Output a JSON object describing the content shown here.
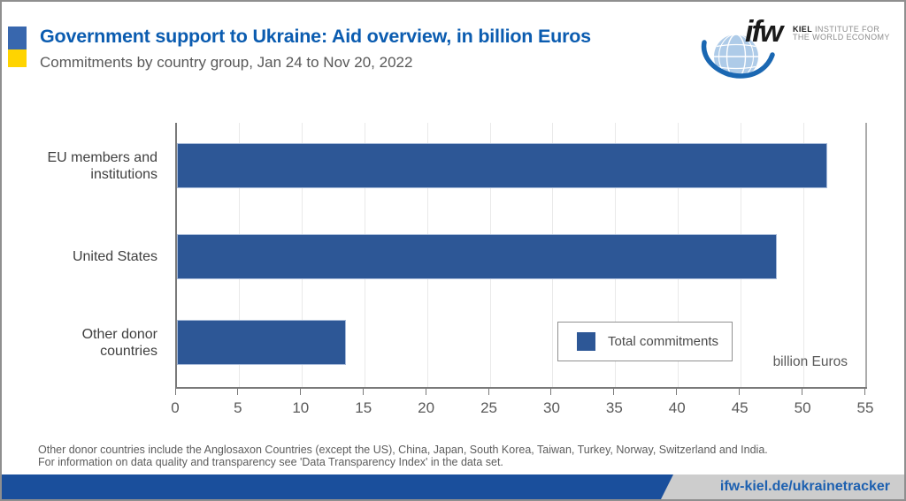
{
  "colors": {
    "title": "#0B5CB0",
    "bar": "#2D5796",
    "flag_blue": "#3867AE",
    "flag_yellow": "#FFD400",
    "footer_blue": "#1A4F9C",
    "footer_link": "#1D60B0"
  },
  "header": {
    "title": "Government support to Ukraine: Aid overview, in billion Euros",
    "subtitle": "Commitments by country group, Jan 24 to Nov 20, 2022"
  },
  "logo": {
    "wordmark": "ifw",
    "institute_bold": "KIEL",
    "institute_line1_rest": "INSTITUTE FOR",
    "institute_line2": "THE WORLD ECONOMY"
  },
  "chart_data": {
    "type": "bar",
    "orientation": "horizontal",
    "title": "Government support to Ukraine: Aid overview, in billion Euros",
    "subtitle": "Commitments by country group, Jan 24 to Nov 20, 2022",
    "categories": [
      "EU members and institutions",
      "United States",
      "Other donor countries"
    ],
    "series": [
      {
        "name": "Total commitments",
        "values": [
          51.8,
          47.8,
          13.5
        ]
      }
    ],
    "unit_label": "billion Euros",
    "xlabel": "billion Euros",
    "xlim": [
      0,
      55
    ],
    "xticks": [
      0,
      5,
      10,
      15,
      20,
      25,
      30,
      35,
      40,
      45,
      50,
      55
    ],
    "grid": true,
    "legend_position": "bottom-right",
    "legend_label": "Total commitments"
  },
  "footnote": {
    "line1": "Other donor countries include the Anglosaxon Countries (except the US), China, Japan, South Korea, Taiwan, Turkey, Norway, Switzerland and India.",
    "line2": "For information on data quality and transparency see 'Data Transparency Index' in the data set."
  },
  "footer": {
    "url": "ifw-kiel.de/ukrainetracker"
  }
}
